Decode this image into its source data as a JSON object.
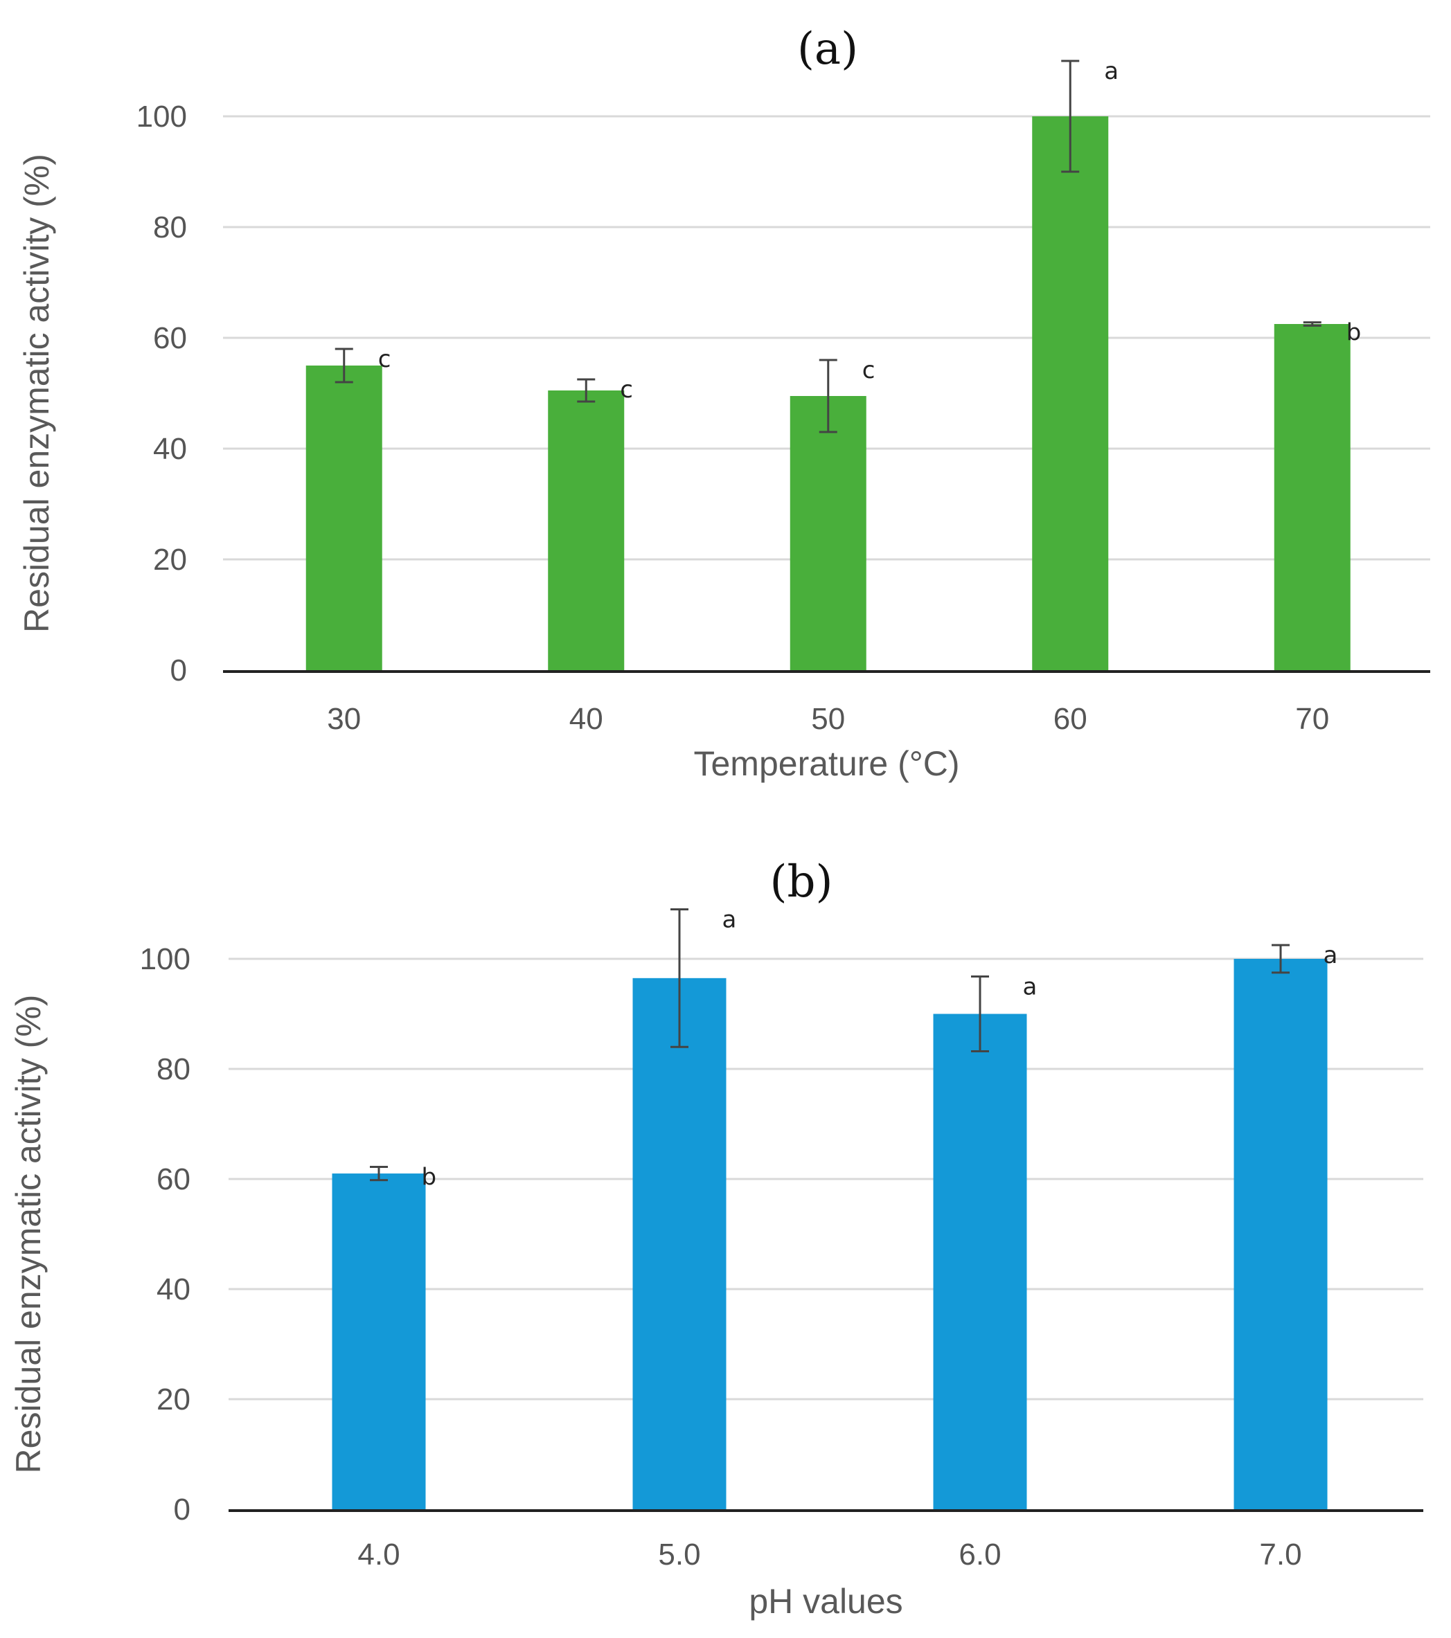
{
  "chart_data": [
    {
      "type": "bar",
      "panel": "(a)",
      "title": "(a)",
      "xlabel": "Temperature (°C)",
      "ylabel": "Residual enzymatic activity (%)",
      "ylim": [
        0,
        100
      ],
      "yticks": [
        "0",
        "20",
        "40",
        "60",
        "80",
        "100"
      ],
      "categories": [
        "30",
        "40",
        "50",
        "60",
        "70"
      ],
      "values": [
        55,
        50.5,
        49.5,
        100,
        62.5
      ],
      "errors": [
        3,
        2,
        6.5,
        10,
        0.3
      ],
      "significance": [
        "c",
        "c",
        "c",
        "a",
        "b"
      ],
      "color": "#49AF3B"
    },
    {
      "type": "bar",
      "panel": "(b)",
      "title": "(b)",
      "xlabel": "pH values",
      "ylabel": "Residual enzymatic activity (%)",
      "ylim": [
        0,
        100
      ],
      "yticks": [
        "0",
        "20",
        "40",
        "60",
        "80",
        "100"
      ],
      "categories": [
        "4.0",
        "5.0",
        "6.0",
        "7.0"
      ],
      "values": [
        61,
        96.5,
        90,
        100
      ],
      "errors": [
        1.2,
        12.5,
        6.8,
        2.5
      ],
      "significance": [
        "b",
        "a",
        "a",
        "a"
      ],
      "color": "#1499D7"
    }
  ]
}
